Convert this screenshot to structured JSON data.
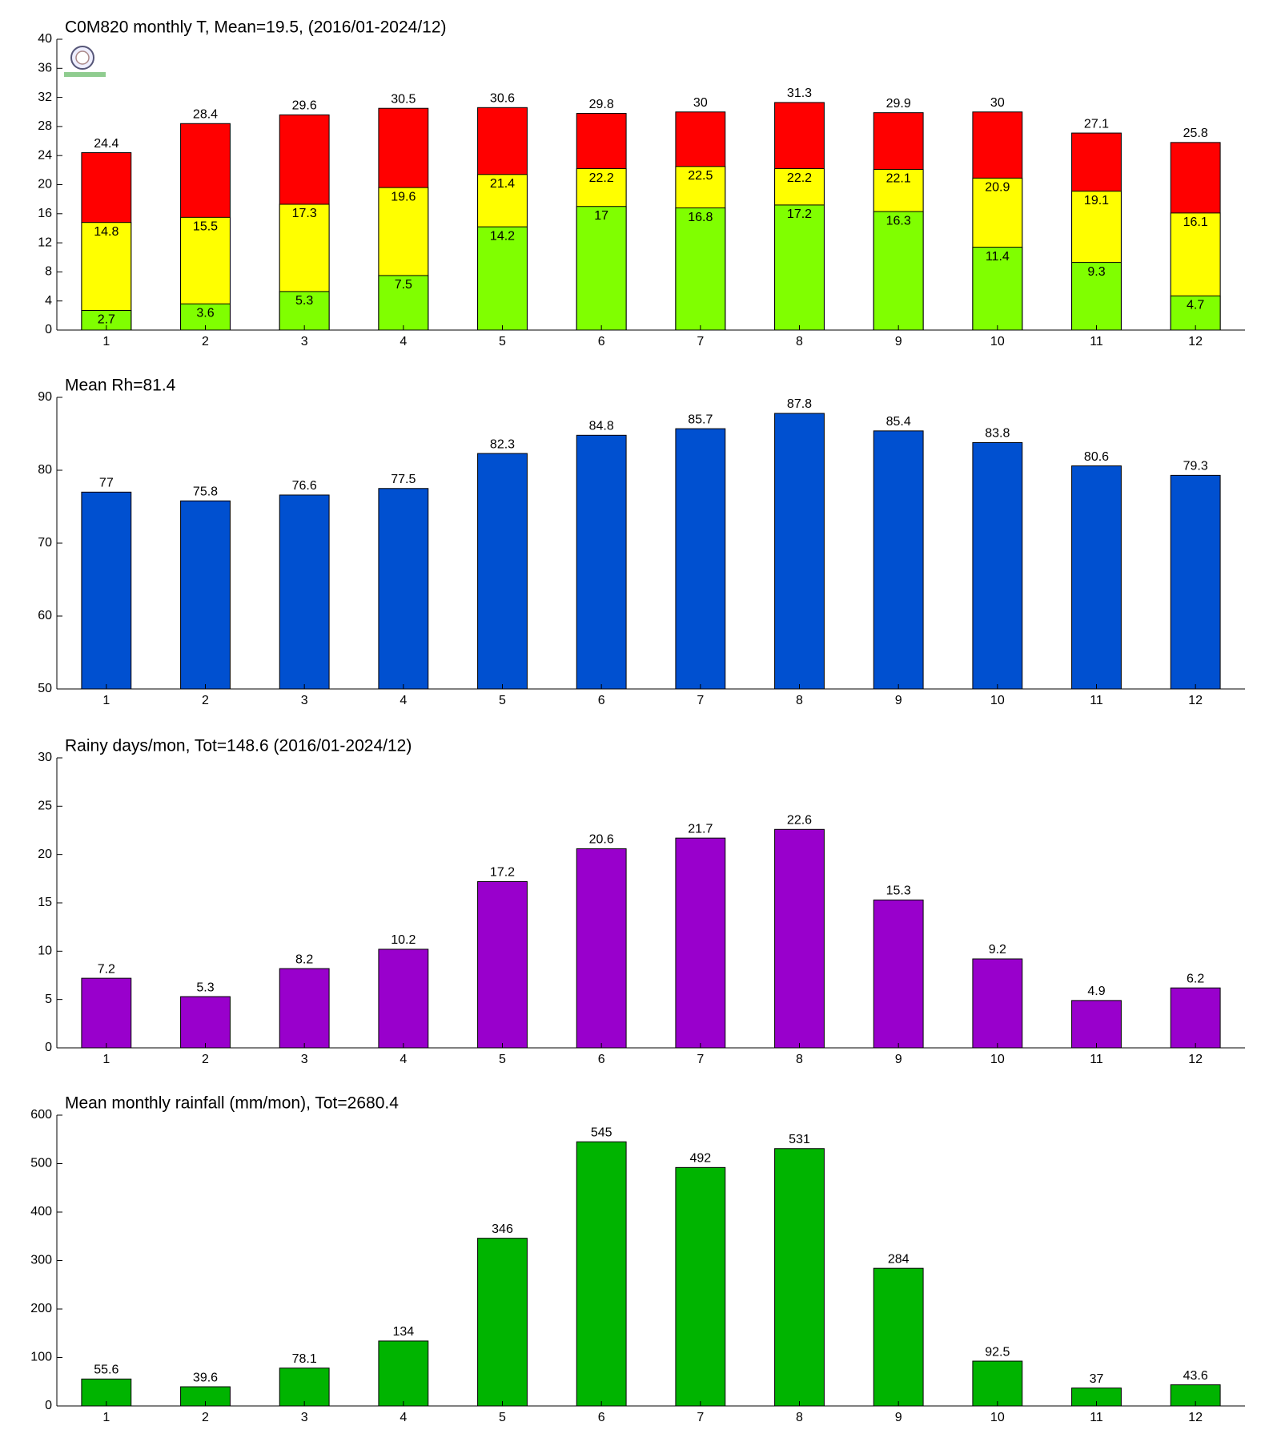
{
  "chart_data": [
    {
      "type": "bar",
      "title": "C0M820 monthly T, Mean=19.5, (2016/01-2024/12)",
      "categories": [
        "1",
        "2",
        "3",
        "4",
        "5",
        "6",
        "7",
        "8",
        "9",
        "10",
        "11",
        "12"
      ],
      "series": [
        {
          "color": "#ff0000",
          "values": [
            24.4,
            28.4,
            29.6,
            30.5,
            30.6,
            29.8,
            30,
            31.3,
            29.9,
            30,
            27.1,
            25.8
          ]
        },
        {
          "color": "#ffff00",
          "values": [
            14.8,
            15.5,
            17.3,
            19.6,
            21.4,
            22.2,
            22.5,
            22.2,
            22.1,
            20.9,
            19.1,
            16.1
          ]
        },
        {
          "color": "#80ff00",
          "values": [
            2.7,
            3.6,
            5.3,
            7.5,
            14.2,
            17,
            16.8,
            17.2,
            16.3,
            11.4,
            9.3,
            4.7
          ]
        }
      ],
      "ylim": [
        0,
        40
      ],
      "yticks": [
        0,
        4,
        8,
        12,
        16,
        20,
        24,
        28,
        32,
        36,
        40
      ]
    },
    {
      "type": "bar",
      "title": "Mean Rh=81.4",
      "categories": [
        "1",
        "2",
        "3",
        "4",
        "5",
        "6",
        "7",
        "8",
        "9",
        "10",
        "11",
        "12"
      ],
      "series": [
        {
          "color": "#0050d0",
          "values": [
            77,
            75.8,
            76.6,
            77.5,
            82.3,
            84.8,
            85.7,
            87.8,
            85.4,
            83.8,
            80.6,
            79.3
          ]
        }
      ],
      "ylim": [
        50,
        90
      ],
      "yticks": [
        50,
        60,
        70,
        80,
        90
      ]
    },
    {
      "type": "bar",
      "title": "Rainy days/mon, Tot=148.6 (2016/01-2024/12)",
      "categories": [
        "1",
        "2",
        "3",
        "4",
        "5",
        "6",
        "7",
        "8",
        "9",
        "10",
        "11",
        "12"
      ],
      "series": [
        {
          "color": "#9900cc",
          "values": [
            7.2,
            5.3,
            8.2,
            10.2,
            17.2,
            20.6,
            21.7,
            22.6,
            15.3,
            9.2,
            4.9,
            6.2
          ]
        }
      ],
      "ylim": [
        0,
        30
      ],
      "yticks": [
        0,
        5,
        10,
        15,
        20,
        25,
        30
      ]
    },
    {
      "type": "bar",
      "title": "Mean monthly rainfall (mm/mon), Tot=2680.4",
      "categories": [
        "1",
        "2",
        "3",
        "4",
        "5",
        "6",
        "7",
        "8",
        "9",
        "10",
        "11",
        "12"
      ],
      "series": [
        {
          "color": "#00b400",
          "values": [
            55.6,
            39.6,
            78.1,
            134,
            346,
            545,
            492,
            531,
            284,
            92.5,
            37,
            43.6
          ]
        }
      ],
      "ylim": [
        0,
        600
      ],
      "yticks": [
        0,
        100,
        200,
        300,
        400,
        500,
        600
      ]
    }
  ]
}
